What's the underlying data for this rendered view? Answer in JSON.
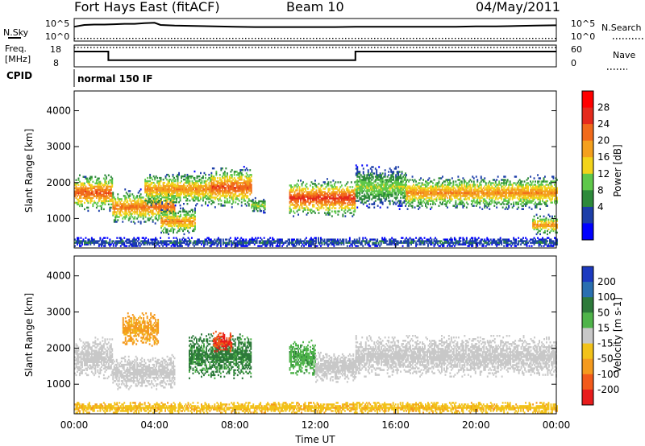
{
  "header": {
    "title": "Fort Hays East (fitACF)",
    "beam": "Beam 10",
    "date": "04/May/2011"
  },
  "noise_panel": {
    "left_label": "N.Sky",
    "right_label": "N.Search",
    "left_ticks": [
      "10^5",
      "10^0"
    ],
    "right_ticks": [
      "10^5",
      "10^0"
    ]
  },
  "freq_panel": {
    "left_label_1": "Freq.",
    "left_label_2": "[MHz]",
    "left_ticks": [
      "18",
      "8"
    ],
    "right_label": "Nave",
    "right_ticks": [
      "60",
      "0"
    ]
  },
  "cpid_panel": {
    "label": "CPID",
    "value": "normal 150 IF"
  },
  "range_axis": {
    "label": "Slant Range [km]",
    "ticks": [
      "1000",
      "2000",
      "3000",
      "4000"
    ]
  },
  "time_axis": {
    "label": "Time UT",
    "ticks": [
      "00:00",
      "04:00",
      "08:00",
      "12:00",
      "16:00",
      "20:00",
      "00:00"
    ]
  },
  "power_scale": {
    "label": "Power [dB]",
    "ticks": [
      "4",
      "8",
      "12",
      "16",
      "20",
      "24",
      "28"
    ],
    "colors": [
      "#0000ff",
      "#1c3ea8",
      "#2d8a3a",
      "#5fc84a",
      "#f2d31a",
      "#f4a01e",
      "#f16a1b",
      "#e52a1c",
      "#ff0000"
    ]
  },
  "velocity_scale": {
    "label": "Velocity [m s-1]",
    "ticks": [
      "200",
      "100",
      "50",
      "15",
      "-15",
      "-50",
      "-100",
      "-200"
    ],
    "colors": [
      "#1c3ac0",
      "#2a6fb0",
      "#2d7a3a",
      "#4fb44a",
      "#c8c8c8",
      "#f2c21a",
      "#f49a1e",
      "#f25a1b",
      "#e81c1c"
    ]
  },
  "chart_data": [
    {
      "type": "line",
      "panel": "noise",
      "series": [
        {
          "name": "N.Sky",
          "x_hours": [
            0,
            0.5,
            1,
            1.5,
            2,
            2.5,
            3,
            3.5,
            4,
            4.3,
            5,
            6,
            7,
            8,
            9,
            10,
            11,
            12,
            13,
            14,
            15,
            16,
            17,
            18,
            19,
            20,
            21,
            22,
            23,
            24
          ],
          "y_log10": [
            3.6,
            4.1,
            4.2,
            4.2,
            4.3,
            4.4,
            4.4,
            4.6,
            4.7,
            4.1,
            3.9,
            3.8,
            3.7,
            3.6,
            3.5,
            3.5,
            3.5,
            3.5,
            3.5,
            3.6,
            3.6,
            3.6,
            3.6,
            3.6,
            3.6,
            3.7,
            3.7,
            3.8,
            3.9,
            4.0
          ]
        },
        {
          "name": "N.Search",
          "x_hours": [
            0,
            24
          ],
          "y_log10": [
            0.3,
            0.3
          ]
        }
      ]
    },
    {
      "type": "line",
      "panel": "frequency",
      "series": [
        {
          "name": "Freq. [MHz]",
          "x_hours": [
            0,
            1.7,
            1.7,
            14.0,
            14.0,
            24
          ],
          "y": [
            15.4,
            15.4,
            10.7,
            10.7,
            15.4,
            15.4
          ]
        },
        {
          "name": "Nave",
          "x_hours": [
            0,
            24
          ],
          "y": [
            57,
            57
          ]
        }
      ]
    },
    {
      "type": "heatmap",
      "panel": "power",
      "x_label": "Time UT",
      "y_label": "Slant Range [km]",
      "x_range_hours": [
        0,
        24
      ],
      "y_range_km": [
        180,
        4550
      ],
      "color_label": "Power [dB]",
      "color_range": [
        0,
        32
      ],
      "regions": [
        {
          "t0": 0.0,
          "t1": 1.9,
          "r_center": 1700,
          "r_width": 550,
          "peak_db": 28
        },
        {
          "t0": 1.9,
          "t1": 5.0,
          "r_center": 1300,
          "r_width": 500,
          "peak_db": 26
        },
        {
          "t0": 3.5,
          "t1": 6.8,
          "r_center": 1800,
          "r_width": 500,
          "peak_db": 24
        },
        {
          "t0": 4.3,
          "t1": 6.0,
          "r_center": 900,
          "r_width": 400,
          "peak_db": 24
        },
        {
          "t0": 6.8,
          "t1": 8.8,
          "r_center": 1850,
          "r_width": 600,
          "peak_db": 28
        },
        {
          "t0": 8.8,
          "t1": 9.5,
          "r_center": 1350,
          "r_width": 250,
          "peak_db": 16
        },
        {
          "t0": 10.7,
          "t1": 14.0,
          "r_center": 1550,
          "r_width": 550,
          "peak_db": 30
        },
        {
          "t0": 14.0,
          "t1": 16.5,
          "r_center": 1850,
          "r_width": 650,
          "peak_db": 16
        },
        {
          "t0": 16.5,
          "t1": 24.0,
          "r_center": 1700,
          "r_width": 500,
          "peak_db": 24
        },
        {
          "t0": 22.8,
          "t1": 24.0,
          "r_center": 800,
          "r_width": 300,
          "peak_db": 24
        },
        {
          "t0": 0.0,
          "t1": 24.0,
          "r_center": 320,
          "r_width": 150,
          "peak_db": 8
        }
      ]
    },
    {
      "type": "heatmap",
      "panel": "velocity",
      "x_label": "Time UT",
      "y_label": "Slant Range [km]",
      "x_range_hours": [
        0,
        24
      ],
      "y_range_km": [
        180,
        4550
      ],
      "color_label": "Velocity [m s-1]",
      "color_range": [
        -250,
        250
      ],
      "regions": [
        {
          "t0": 0.0,
          "t1": 1.9,
          "r_center": 1700,
          "r_width": 600,
          "velocity": 0
        },
        {
          "t0": 1.9,
          "t1": 5.0,
          "r_center": 1300,
          "r_width": 500,
          "velocity": 0
        },
        {
          "t0": 2.4,
          "t1": 4.2,
          "r_center": 2500,
          "r_width": 500,
          "velocity": -60
        },
        {
          "t0": 5.7,
          "t1": 8.8,
          "r_center": 1750,
          "r_width": 650,
          "velocity": 60
        },
        {
          "t0": 6.9,
          "t1": 7.8,
          "r_center": 2150,
          "r_width": 300,
          "velocity": -200
        },
        {
          "t0": 10.7,
          "t1": 12.0,
          "r_center": 1700,
          "r_width": 500,
          "velocity": 40
        },
        {
          "t0": 12.0,
          "t1": 14.0,
          "r_center": 1450,
          "r_width": 450,
          "velocity": 0
        },
        {
          "t0": 14.0,
          "t1": 24.0,
          "r_center": 1750,
          "r_width": 600,
          "velocity": 0
        },
        {
          "t0": 0.0,
          "t1": 24.0,
          "r_center": 330,
          "r_width": 180,
          "velocity": -40
        }
      ]
    }
  ]
}
